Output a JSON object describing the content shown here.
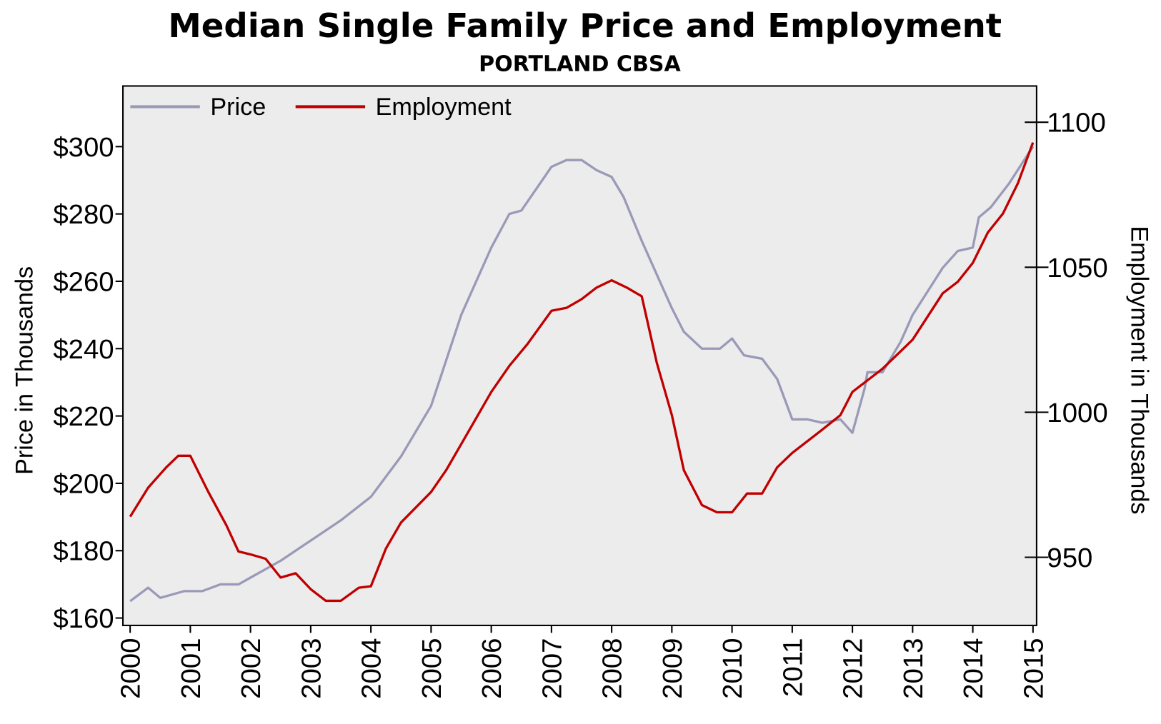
{
  "chart_data": {
    "type": "line",
    "title": "Median Single Family Price and Employment",
    "subtitle": "PORTLAND CBSA",
    "y_label": "Price in Thousands",
    "y2_label": "Employment in Thousands",
    "legend": "top-left",
    "background": "#ececec",
    "xlim": [
      1999.88,
      2015.06
    ],
    "xticks": [
      2000,
      2001,
      2002,
      2003,
      2004,
      2005,
      2006,
      2007,
      2008,
      2009,
      2010,
      2011,
      2012,
      2013,
      2014,
      2015
    ],
    "ylim": [
      157.8,
      318
    ],
    "yticks": [
      {
        "value": 160,
        "label": "$160"
      },
      {
        "value": 180,
        "label": "$180"
      },
      {
        "value": 200,
        "label": "$200"
      },
      {
        "value": 220,
        "label": "$220"
      },
      {
        "value": 240,
        "label": "$240"
      },
      {
        "value": 260,
        "label": "$260"
      },
      {
        "value": 280,
        "label": "$280"
      },
      {
        "value": 300,
        "label": "$300"
      }
    ],
    "y2lim": [
      926.5,
      1112.5
    ],
    "y2ticks": [
      950,
      1000,
      1050,
      1100
    ],
    "series": [
      {
        "name": "Price",
        "color": "#9a9ab8",
        "axis": "y",
        "x": [
          2000.0,
          2000.3,
          2000.5,
          2000.9,
          2001.2,
          2001.5,
          2001.8,
          2002.0,
          2002.5,
          2003.0,
          2003.5,
          2004.0,
          2004.5,
          2005.0,
          2005.5,
          2006.0,
          2006.3,
          2006.5,
          2007.0,
          2007.25,
          2007.5,
          2007.75,
          2008.0,
          2008.2,
          2008.5,
          2008.8,
          2009.0,
          2009.2,
          2009.5,
          2009.8,
          2010.0,
          2010.2,
          2010.5,
          2010.75,
          2011.0,
          2011.25,
          2011.5,
          2011.8,
          2012.0,
          2012.2,
          2012.25,
          2012.5,
          2012.8,
          2013.0,
          2013.5,
          2013.75,
          2014.0,
          2014.1,
          2014.3,
          2014.6,
          2015.0
        ],
        "values": [
          165,
          169,
          166,
          168,
          168,
          170,
          170,
          172,
          177,
          183,
          189,
          196,
          208,
          223,
          250,
          270,
          280,
          281,
          294,
          296,
          296,
          293,
          291,
          285,
          272,
          260,
          252,
          245,
          240,
          240,
          243,
          238,
          237,
          231,
          219,
          219,
          218,
          219,
          215,
          228,
          233,
          233,
          242,
          250,
          264,
          269,
          270,
          279,
          282,
          289,
          300
        ]
      },
      {
        "name": "Employment",
        "color": "#c00000",
        "axis": "y2",
        "x": [
          2000.0,
          2000.3,
          2000.6,
          2000.8,
          2001.0,
          2001.3,
          2001.6,
          2001.8,
          2002.0,
          2002.25,
          2002.5,
          2002.75,
          2003.0,
          2003.25,
          2003.5,
          2003.8,
          2004.0,
          2004.25,
          2004.5,
          2005.0,
          2005.25,
          2005.5,
          2006.0,
          2006.3,
          2006.6,
          2007.0,
          2007.25,
          2007.5,
          2007.75,
          2008.0,
          2008.25,
          2008.5,
          2008.75,
          2009.0,
          2009.2,
          2009.5,
          2009.75,
          2010.0,
          2010.25,
          2010.5,
          2010.75,
          2011.0,
          2011.5,
          2011.8,
          2012.0,
          2012.5,
          2013.0,
          2013.5,
          2013.75,
          2014.0,
          2014.25,
          2014.5,
          2014.75,
          2015.0
        ],
        "values": [
          964,
          974,
          981,
          985,
          985,
          972.5,
          961,
          952,
          951,
          949.5,
          943,
          944.5,
          939,
          935,
          935,
          939.5,
          940,
          953,
          962,
          972.5,
          980,
          989,
          1007,
          1016,
          1023.5,
          1035,
          1036,
          1039,
          1043,
          1045.5,
          1043,
          1040,
          1017,
          999,
          980,
          968,
          965.5,
          965.5,
          972,
          972,
          981,
          986,
          994,
          999,
          1007,
          1015,
          1025,
          1041,
          1045,
          1051.5,
          1062,
          1068.5,
          1079,
          1093
        ]
      }
    ]
  }
}
